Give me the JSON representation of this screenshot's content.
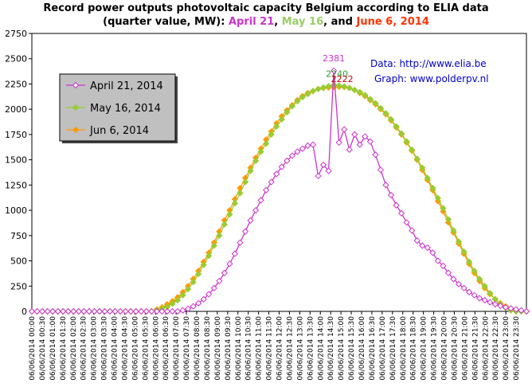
{
  "chart_data": {
    "type": "line",
    "title_line1": "Record power outputs photovoltaic capacity Belgium according to ELIA data",
    "title_line2_prefix": "(quarter value, MW): ",
    "title_parts": [
      {
        "text": "April 21",
        "color": "#cc33cc"
      },
      {
        "text": ", ",
        "color": "#000000"
      },
      {
        "text": "May 16",
        "color": "#99cc66"
      },
      {
        "text": ", and ",
        "color": "#000000"
      },
      {
        "text": "June 6, 2014",
        "color": "#ff3300"
      }
    ],
    "source_text": "Data:  http://www.elia.be",
    "graph_text": "Graph:  www.polderpv.nl",
    "ylim": [
      0,
      2750
    ],
    "y_ticks": [
      0,
      250,
      500,
      750,
      1000,
      1250,
      1500,
      1750,
      2000,
      2250,
      2500,
      2750
    ],
    "grid": false,
    "legend_position": "left",
    "x_labels": [
      "06/06/2014 00:00",
      "06/06/2014 00:30",
      "06/06/2014 01:00",
      "06/06/2014 01:30",
      "06/06/2014 02:00",
      "06/06/2014 02:30",
      "06/06/2014 03:00",
      "06/06/2014 03:30",
      "06/06/2014 04:00",
      "06/06/2014 04:30",
      "06/06/2014 05:00",
      "06/06/2014 05:30",
      "06/06/2014 06:00",
      "06/06/2014 06:30",
      "06/06/2014 07:00",
      "06/06/2014 07:30",
      "06/06/2014 08:00",
      "06/06/2014 08:30",
      "06/06/2014 09:00",
      "06/06/2014 09:30",
      "06/06/2014 10:00",
      "06/06/2014 10:30",
      "06/06/2014 11:00",
      "06/06/2014 11:30",
      "06/06/2014 12:00",
      "06/06/2014 12:30",
      "06/06/2014 13:00",
      "06/06/2014 13:30",
      "06/06/2014 14:00",
      "06/06/2014 14:30",
      "06/06/2014 15:00",
      "06/06/2014 15:30",
      "06/06/2014 16:00",
      "06/06/2014 16:30",
      "06/06/2014 17:00",
      "06/06/2014 17:30",
      "06/06/2014 18:00",
      "06/06/2014 18:30",
      "06/06/2014 19:00",
      "06/06/2014 19:30",
      "06/06/2014 20:00",
      "06/06/2014 20:30",
      "06/06/2014 21:00",
      "06/06/2014 21:30",
      "06/06/2014 22:00",
      "06/06/2014 22:30",
      "06/06/2014 23:00",
      "06/06/2014 23:30"
    ],
    "series": [
      {
        "name": "April 21, 2014",
        "color": "#cc33cc",
        "marker_fill": "#ffffff",
        "values": [
          0,
          0,
          0,
          0,
          0,
          0,
          0,
          0,
          0,
          0,
          0,
          0,
          0,
          0,
          0,
          0,
          0,
          0,
          0,
          0,
          0,
          0,
          0,
          0,
          0,
          0,
          0,
          0,
          0,
          10,
          25,
          50,
          80,
          120,
          170,
          230,
          300,
          380,
          470,
          570,
          680,
          790,
          900,
          1000,
          1100,
          1200,
          1280,
          1360,
          1430,
          1490,
          1540,
          1580,
          1610,
          1640,
          1650,
          1340,
          1450,
          1390,
          2381,
          1670,
          1800,
          1600,
          1750,
          1650,
          1730,
          1680,
          1550,
          1400,
          1250,
          1150,
          1050,
          970,
          880,
          800,
          700,
          650,
          630,
          580,
          500,
          450,
          380,
          320,
          270,
          230,
          190,
          160,
          130,
          110,
          90,
          70,
          55,
          40,
          30,
          20,
          10,
          0
        ]
      },
      {
        "name": "May 16, 2014",
        "color": "#99cc33",
        "marker_fill": "#99cc33",
        "values": [
          0,
          0,
          0,
          0,
          0,
          0,
          0,
          0,
          0,
          0,
          0,
          0,
          0,
          0,
          0,
          0,
          0,
          0,
          0,
          0,
          0,
          0,
          0,
          0,
          10,
          25,
          45,
          75,
          110,
          160,
          220,
          290,
          370,
          460,
          550,
          650,
          750,
          860,
          960,
          1070,
          1170,
          1280,
          1390,
          1490,
          1580,
          1660,
          1750,
          1830,
          1900,
          1970,
          2030,
          2080,
          2120,
          2150,
          2180,
          2200,
          2215,
          2228,
          2240,
          2235,
          2225,
          2210,
          2190,
          2170,
          2140,
          2100,
          2060,
          2010,
          1960,
          1900,
          1830,
          1760,
          1680,
          1600,
          1510,
          1420,
          1320,
          1220,
          1120,
          1020,
          910,
          800,
          690,
          590,
          490,
          400,
          320,
          250,
          180,
          120,
          70,
          35,
          10,
          0,
          0,
          0
        ]
      },
      {
        "name": "Jun 6, 2014",
        "color": "#ff9900",
        "marker_fill": "#ff9900",
        "values": [
          0,
          0,
          0,
          0,
          0,
          0,
          0,
          0,
          0,
          0,
          0,
          0,
          0,
          0,
          0,
          0,
          0,
          0,
          0,
          0,
          0,
          0,
          0,
          0,
          20,
          40,
          70,
          100,
          140,
          190,
          250,
          320,
          400,
          490,
          580,
          680,
          790,
          900,
          1000,
          1110,
          1220,
          1320,
          1420,
          1520,
          1610,
          1700,
          1780,
          1860,
          1930,
          1990,
          2040,
          2090,
          2130,
          2160,
          2180,
          2200,
          2210,
          2215,
          2220,
          2222,
          2220,
          2210,
          2190,
          2160,
          2130,
          2090,
          2050,
          2000,
          1950,
          1890,
          1820,
          1750,
          1670,
          1590,
          1500,
          1400,
          1300,
          1200,
          1090,
          990,
          880,
          780,
          670,
          570,
          470,
          380,
          300,
          230,
          170,
          120,
          80,
          50,
          30,
          15,
          5,
          0
        ]
      }
    ],
    "peaks": [
      {
        "series": 0,
        "index": 58,
        "label": "2381",
        "color": "#cc33cc"
      },
      {
        "series": 1,
        "index": 58,
        "label": "2240",
        "color": "#339933"
      },
      {
        "series": 2,
        "index": 59,
        "label": "2222",
        "color": "#cc0000"
      }
    ],
    "colors": {
      "axis": "#000000",
      "legend_bg": "#c0c0c0",
      "source_text": "#0000cc"
    }
  }
}
